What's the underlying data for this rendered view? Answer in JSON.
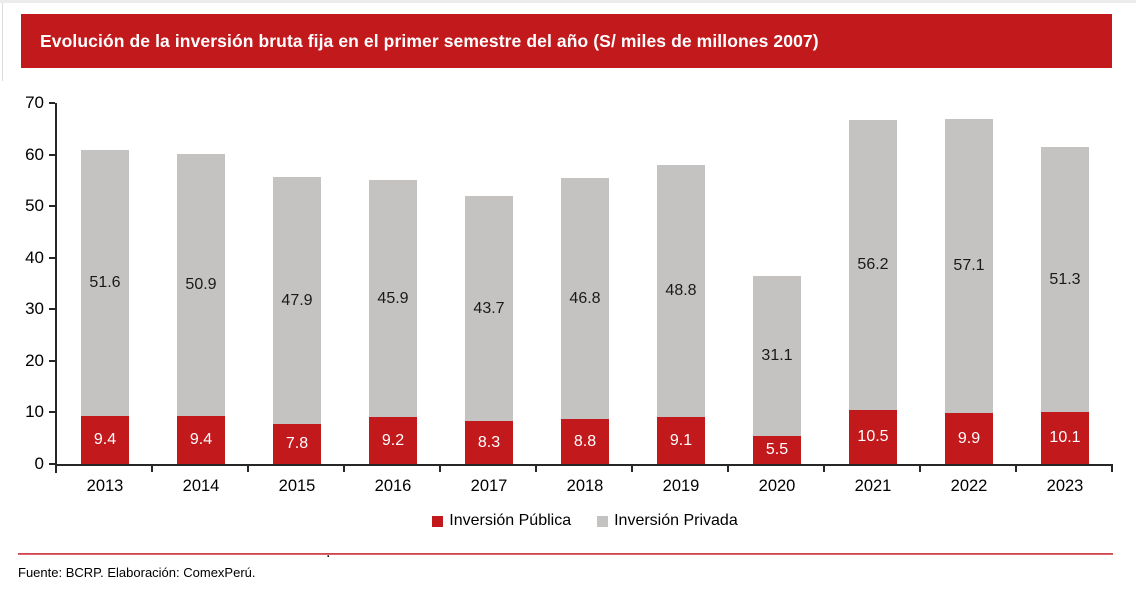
{
  "chart_data": {
    "type": "bar",
    "stacked": true,
    "title": "Evolución de la inversión bruta fija en el primer semestre del año (S/ miles de millones 2007)",
    "categories": [
      "2013",
      "2014",
      "2015",
      "2016",
      "2017",
      "2018",
      "2019",
      "2020",
      "2021",
      "2022",
      "2023"
    ],
    "series": [
      {
        "name": "Inversión Pública",
        "color": "#c2191d",
        "label_color": "#ffffff",
        "values": [
          9.4,
          9.4,
          7.8,
          9.2,
          8.3,
          8.8,
          9.1,
          5.5,
          10.5,
          9.9,
          10.1
        ]
      },
      {
        "name": "Inversión Privada",
        "color": "#c4c3c1",
        "label_color": "#1a1a1a",
        "values": [
          51.6,
          50.9,
          47.9,
          45.9,
          43.7,
          46.8,
          48.8,
          31.1,
          56.2,
          57.1,
          51.3
        ]
      }
    ],
    "totals": [
      61.0,
      60.3,
      55.7,
      55.1,
      52.0,
      55.6,
      57.9,
      36.6,
      66.7,
      67.0,
      61.4
    ],
    "xlabel": "",
    "ylabel": "",
    "ylim": [
      0,
      70
    ],
    "yticks": [
      0,
      10,
      20,
      30,
      40,
      50,
      60,
      70
    ],
    "grid": false,
    "legend_position": "bottom",
    "data_labels": true
  },
  "banner": {
    "bg_color": "#c2191d",
    "text_color": "#ffffff"
  },
  "footer": {
    "source": "Fuente: BCRP. Elaboración: ComexPerú.",
    "stray_dot": "."
  },
  "axis": {
    "color": "#262626"
  }
}
